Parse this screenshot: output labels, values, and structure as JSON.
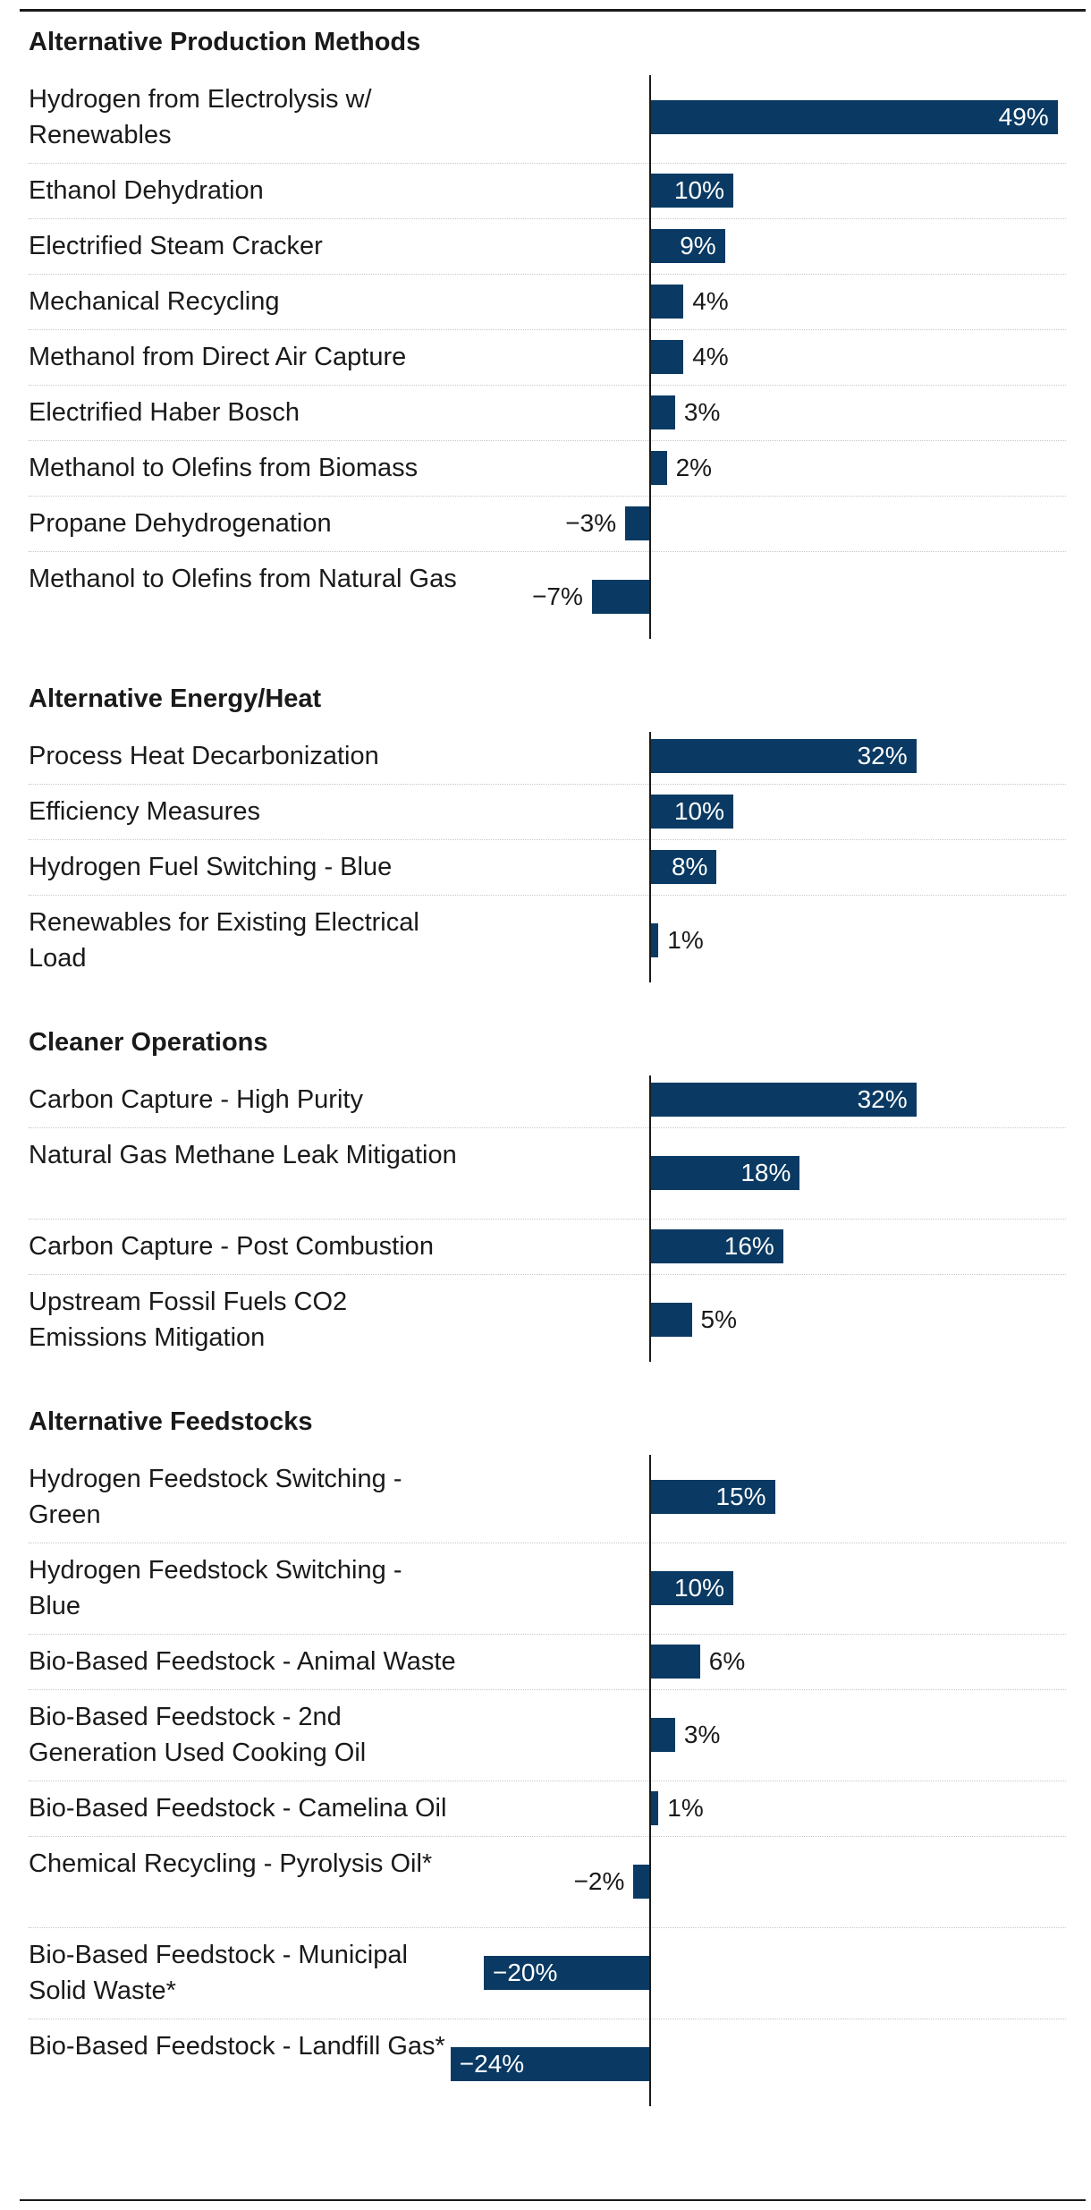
{
  "chart_data": {
    "type": "bar",
    "orientation": "horizontal",
    "value_format": "percent",
    "colors": {
      "bar": "#0a3a63",
      "axis": "#1a1a1a",
      "divider": "#c8c8c8"
    },
    "groups": [
      {
        "title": "Alternative Production Methods",
        "items": [
          {
            "label": "Hydrogen from Electrolysis w/ Renewables",
            "value": 49,
            "value_label": "49%"
          },
          {
            "label": "Ethanol Dehydration",
            "value": 10,
            "value_label": "10%"
          },
          {
            "label": "Electrified Steam Cracker",
            "value": 9,
            "value_label": "9%"
          },
          {
            "label": "Mechanical Recycling",
            "value": 4,
            "value_label": "4%"
          },
          {
            "label": "Methanol from Direct Air Capture",
            "value": 4,
            "value_label": "4%"
          },
          {
            "label": "Electrified Haber Bosch",
            "value": 3,
            "value_label": "3%"
          },
          {
            "label": "Methanol to Olefins from Biomass",
            "value": 2,
            "value_label": "2%"
          },
          {
            "label": "Propane Dehydrogenation",
            "value": -3,
            "value_label": "−3%"
          },
          {
            "label": "Methanol to Olefins from Natural Gas",
            "value": -7,
            "value_label": "−7%"
          }
        ]
      },
      {
        "title": "Alternative Energy/Heat",
        "items": [
          {
            "label": "Process Heat Decarbonization",
            "value": 32,
            "value_label": "32%"
          },
          {
            "label": "Efficiency Measures",
            "value": 10,
            "value_label": "10%"
          },
          {
            "label": "Hydrogen Fuel Switching - Blue",
            "value": 8,
            "value_label": "8%"
          },
          {
            "label": "Renewables for Existing Electrical Load",
            "value": 1,
            "value_label": "1%"
          }
        ]
      },
      {
        "title": "Cleaner Operations",
        "items": [
          {
            "label": "Carbon Capture - High Purity",
            "value": 32,
            "value_label": "32%"
          },
          {
            "label": "Natural Gas Methane Leak Mitigation",
            "value": 18,
            "value_label": "18%"
          },
          {
            "label": "Carbon Capture - Post Combustion",
            "value": 16,
            "value_label": "16%"
          },
          {
            "label": "Upstream Fossil Fuels CO2 Emissions Mitigation",
            "value": 5,
            "value_label": "5%"
          }
        ]
      },
      {
        "title": "Alternative Feedstocks",
        "items": [
          {
            "label": "Hydrogen Feedstock Switching - Green",
            "value": 15,
            "value_label": "15%"
          },
          {
            "label": "Hydrogen Feedstock Switching - Blue",
            "value": 10,
            "value_label": "10%"
          },
          {
            "label": "Bio-Based Feedstock - Animal Waste",
            "value": 6,
            "value_label": "6%"
          },
          {
            "label": "Bio-Based Feedstock - 2nd Generation Used Cooking Oil",
            "value": 3,
            "value_label": "3%"
          },
          {
            "label": "Bio-Based Feedstock - Camelina Oil",
            "value": 1,
            "value_label": "1%"
          },
          {
            "label": "Chemical Recycling - Pyrolysis Oil*",
            "value": -2,
            "value_label": "−2%"
          },
          {
            "label": "Bio-Based Feedstock - Municipal Solid Waste*",
            "value": -20,
            "value_label": "−20%"
          },
          {
            "label": "Bio-Based Feedstock - Landfill Gas*",
            "value": -24,
            "value_label": "−24%"
          }
        ]
      }
    ]
  }
}
